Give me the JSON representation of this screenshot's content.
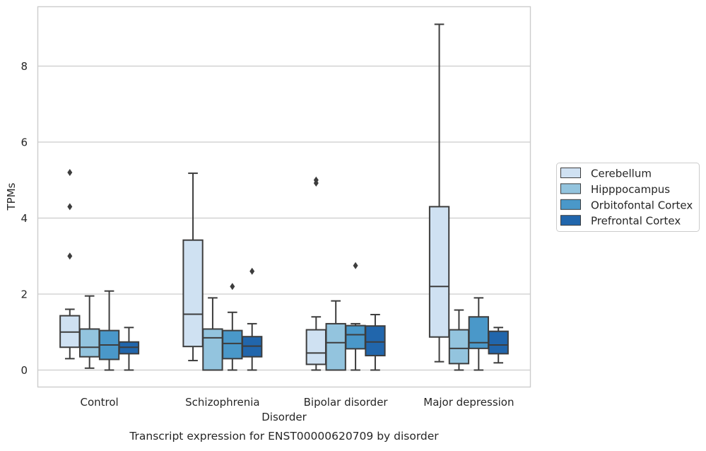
{
  "chart_data": {
    "type": "box",
    "xlabel": "Disorder",
    "ylabel": "TPMs",
    "caption": "Transcript expression for ENST00000620709 by disorder",
    "categories": [
      "Control",
      "Schizophrenia",
      "Bipolar disorder",
      "Major depression"
    ],
    "yticks": [
      0,
      2,
      4,
      6,
      8
    ],
    "ylim": [
      -0.45,
      9.6
    ],
    "grid": "horizontal",
    "legend_position": "right",
    "series": [
      {
        "name": "Cerebellum",
        "color": "#cfe1f2",
        "boxes": [
          {
            "whislo": 0.3,
            "q1": 0.6,
            "med": 1.0,
            "q3": 1.43,
            "whishi": 1.6,
            "fliers": [
              3.0,
              4.3,
              5.2
            ]
          },
          {
            "whislo": 0.25,
            "q1": 0.62,
            "med": 1.47,
            "q3": 3.42,
            "whishi": 5.18,
            "fliers": []
          },
          {
            "whislo": 0.0,
            "q1": 0.15,
            "med": 0.45,
            "q3": 1.06,
            "whishi": 1.4,
            "fliers": [
              4.92,
              5.0
            ]
          },
          {
            "whislo": 0.22,
            "q1": 0.87,
            "med": 2.2,
            "q3": 4.3,
            "whishi": 9.1,
            "fliers": []
          }
        ]
      },
      {
        "name": "Hipppocampus",
        "color": "#93c4de",
        "boxes": [
          {
            "whislo": 0.05,
            "q1": 0.35,
            "med": 0.6,
            "q3": 1.08,
            "whishi": 1.95,
            "fliers": []
          },
          {
            "whislo": 0.0,
            "q1": 0.0,
            "med": 0.85,
            "q3": 1.08,
            "whishi": 1.9,
            "fliers": []
          },
          {
            "whislo": 0.0,
            "q1": 0.0,
            "med": 0.72,
            "q3": 1.22,
            "whishi": 1.82,
            "fliers": []
          },
          {
            "whislo": 0.0,
            "q1": 0.17,
            "med": 0.57,
            "q3": 1.06,
            "whishi": 1.58,
            "fliers": []
          }
        ]
      },
      {
        "name": "Orbitofontal Cortex",
        "color": "#4a98c9",
        "boxes": [
          {
            "whislo": 0.0,
            "q1": 0.28,
            "med": 0.66,
            "q3": 1.04,
            "whishi": 2.08,
            "fliers": []
          },
          {
            "whislo": 0.0,
            "q1": 0.3,
            "med": 0.7,
            "q3": 1.04,
            "whishi": 1.52,
            "fliers": [
              2.2
            ]
          },
          {
            "whislo": 0.0,
            "q1": 0.56,
            "med": 0.93,
            "q3": 1.17,
            "whishi": 1.22,
            "fliers": [
              2.75
            ]
          },
          {
            "whislo": 0.0,
            "q1": 0.57,
            "med": 0.72,
            "q3": 1.4,
            "whishi": 1.9,
            "fliers": []
          }
        ]
      },
      {
        "name": "Prefrontal Cortex",
        "color": "#2166ac",
        "boxes": [
          {
            "whislo": 0.0,
            "q1": 0.43,
            "med": 0.6,
            "q3": 0.74,
            "whishi": 1.12,
            "fliers": []
          },
          {
            "whislo": 0.0,
            "q1": 0.35,
            "med": 0.63,
            "q3": 0.88,
            "whishi": 1.22,
            "fliers": [
              2.6
            ]
          },
          {
            "whislo": 0.0,
            "q1": 0.38,
            "med": 0.74,
            "q3": 1.16,
            "whishi": 1.46,
            "fliers": []
          },
          {
            "whislo": 0.19,
            "q1": 0.43,
            "med": 0.66,
            "q3": 1.02,
            "whishi": 1.12,
            "fliers": []
          }
        ]
      }
    ]
  }
}
